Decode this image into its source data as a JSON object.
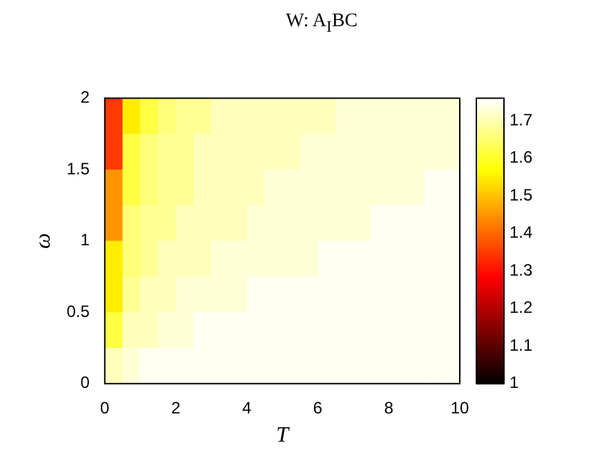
{
  "chart_data": {
    "type": "heatmap",
    "title": "W: A$_{I}$BC",
    "xlabel": "T",
    "ylabel": "ω",
    "cells": [
      [
        1.35,
        1.55,
        1.62,
        1.66,
        1.68,
        1.68,
        1.71,
        1.71,
        1.71,
        1.71,
        1.71,
        1.71,
        1.71,
        1.73,
        1.73,
        1.73,
        1.73,
        1.73,
        1.73,
        1.73
      ],
      [
        1.35,
        1.62,
        1.66,
        1.68,
        1.68,
        1.71,
        1.71,
        1.71,
        1.71,
        1.71,
        1.71,
        1.73,
        1.73,
        1.73,
        1.73,
        1.73,
        1.73,
        1.73,
        1.73,
        1.73
      ],
      [
        1.45,
        1.62,
        1.66,
        1.68,
        1.68,
        1.71,
        1.71,
        1.71,
        1.71,
        1.73,
        1.73,
        1.73,
        1.73,
        1.73,
        1.73,
        1.73,
        1.73,
        1.73,
        1.75,
        1.75
      ],
      [
        1.45,
        1.66,
        1.68,
        1.68,
        1.71,
        1.71,
        1.71,
        1.71,
        1.73,
        1.73,
        1.73,
        1.73,
        1.73,
        1.73,
        1.73,
        1.75,
        1.75,
        1.75,
        1.75,
        1.75
      ],
      [
        1.55,
        1.66,
        1.68,
        1.71,
        1.71,
        1.71,
        1.73,
        1.73,
        1.73,
        1.73,
        1.73,
        1.73,
        1.75,
        1.75,
        1.75,
        1.75,
        1.75,
        1.75,
        1.75,
        1.75
      ],
      [
        1.55,
        1.68,
        1.71,
        1.71,
        1.73,
        1.73,
        1.73,
        1.73,
        1.75,
        1.75,
        1.75,
        1.75,
        1.75,
        1.75,
        1.75,
        1.75,
        1.75,
        1.75,
        1.75,
        1.75
      ],
      [
        1.62,
        1.71,
        1.71,
        1.73,
        1.73,
        1.75,
        1.75,
        1.75,
        1.75,
        1.75,
        1.75,
        1.75,
        1.75,
        1.75,
        1.75,
        1.75,
        1.75,
        1.75,
        1.75,
        1.75
      ],
      [
        1.71,
        1.73,
        1.75,
        1.75,
        1.75,
        1.75,
        1.75,
        1.75,
        1.75,
        1.75,
        1.75,
        1.75,
        1.75,
        1.75,
        1.75,
        1.75,
        1.75,
        1.75,
        1.75,
        1.75
      ]
    ],
    "clim": [
      1,
      1.76
    ],
    "cticks": [
      1,
      1.1,
      1.2,
      1.3,
      1.4,
      1.5,
      1.6,
      1.7
    ],
    "xlim": [
      0,
      10
    ],
    "xticks": [
      0,
      2,
      4,
      6,
      8,
      10
    ],
    "ylim": [
      0,
      2
    ],
    "yticks": [
      0,
      0.5,
      1,
      1.5,
      2
    ]
  }
}
